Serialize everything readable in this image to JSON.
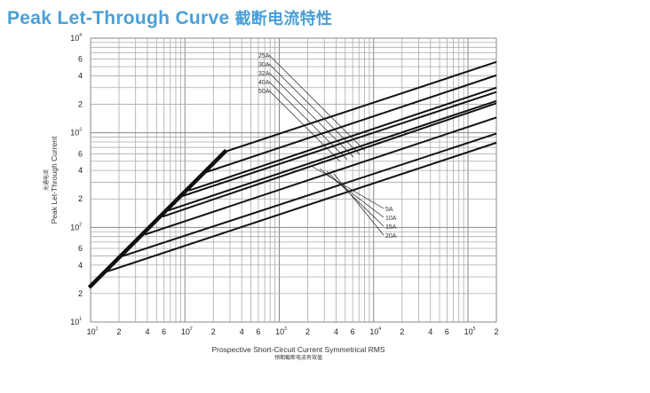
{
  "page": {
    "title_en": "Peak Let-Through Curve",
    "title_cn": "截断电流特性"
  },
  "chart_data": {
    "type": "line",
    "title": "Peak Let-Through Curve 截断电流特性",
    "xlabel": "Prospective Short-Circuit Current Symmetrical RMS",
    "xlabel_cn": "预期截断电流有效值",
    "ylabel": "Peak Let-Through Current",
    "ylabel_cn": "允通电流",
    "xscale": "log",
    "yscale": "log",
    "xlim": [
      10,
      200000
    ],
    "ylim": [
      10,
      10000
    ],
    "grid": true,
    "x_ticks": [
      {
        "v": 10,
        "base": "10",
        "exp": "1"
      },
      {
        "v": 20,
        "base": "2"
      },
      {
        "v": 40,
        "base": "4"
      },
      {
        "v": 60,
        "base": "6"
      },
      {
        "v": 100,
        "base": "10",
        "exp": "2"
      },
      {
        "v": 200,
        "base": "2"
      },
      {
        "v": 400,
        "base": "4"
      },
      {
        "v": 600,
        "base": "6"
      },
      {
        "v": 1000,
        "base": "10",
        "exp": "3"
      },
      {
        "v": 2000,
        "base": "2"
      },
      {
        "v": 4000,
        "base": "4"
      },
      {
        "v": 6000,
        "base": "6"
      },
      {
        "v": 10000,
        "base": "10",
        "exp": "4"
      },
      {
        "v": 20000,
        "base": "2"
      },
      {
        "v": 40000,
        "base": "4"
      },
      {
        "v": 60000,
        "base": "6"
      },
      {
        "v": 100000,
        "base": "10",
        "exp": "5"
      },
      {
        "v": 200000,
        "base": "2"
      }
    ],
    "y_ticks": [
      {
        "v": 10000,
        "base": "10",
        "exp": "4"
      },
      {
        "v": 6000,
        "base": "6"
      },
      {
        "v": 4000,
        "base": "4"
      },
      {
        "v": 2000,
        "base": "2"
      },
      {
        "v": 1000,
        "base": "10",
        "exp": "3"
      },
      {
        "v": 600,
        "base": "6"
      },
      {
        "v": 400,
        "base": "4"
      },
      {
        "v": 200,
        "base": "2"
      },
      {
        "v": 100,
        "base": "10",
        "exp": "2"
      },
      {
        "v": 60,
        "base": "6"
      },
      {
        "v": 40,
        "base": "4"
      },
      {
        "v": 20,
        "base": "2"
      },
      {
        "v": 10,
        "base": "10",
        "exp": "1"
      }
    ],
    "envelope": {
      "name": "envelope",
      "x": [
        10,
        265
      ],
      "y": [
        24,
        630
      ]
    },
    "series": [
      {
        "name": "50A",
        "x": [
          265,
          200000
        ],
        "y": [
          630,
          5600
        ],
        "label_group": "top"
      },
      {
        "name": "40A",
        "x": [
          170,
          200000
        ],
        "y": [
          385,
          4050
        ],
        "label_group": "top"
      },
      {
        "name": "32A",
        "x": [
          110,
          200000
        ],
        "y": [
          245,
          3000
        ],
        "label_group": "top"
      },
      {
        "name": "30A",
        "x": [
          95,
          200000
        ],
        "y": [
          215,
          2700
        ],
        "label_group": "top"
      },
      {
        "name": "25A",
        "x": [
          65,
          200000
        ],
        "y": [
          150,
          2170
        ],
        "label_group": "top"
      },
      {
        "name": "20A",
        "x": [
          58,
          200000
        ],
        "y": [
          130,
          2050
        ],
        "label_group": "bottom"
      },
      {
        "name": "15A",
        "x": [
          37.6,
          200000
        ],
        "y": [
          84,
          1450
        ],
        "label_group": "bottom"
      },
      {
        "name": "10A",
        "x": [
          19.6,
          200000
        ],
        "y": [
          48,
          980
        ],
        "label_group": "bottom"
      },
      {
        "name": "5A",
        "x": [
          14.7,
          200000
        ],
        "y": [
          34,
          785
        ],
        "label_group": "bottom"
      }
    ],
    "labels_top": [
      "25A",
      "30A",
      "32A",
      "40A",
      "50A"
    ],
    "labels_bottom": [
      "5A",
      "10A",
      "15A",
      "20A"
    ]
  }
}
